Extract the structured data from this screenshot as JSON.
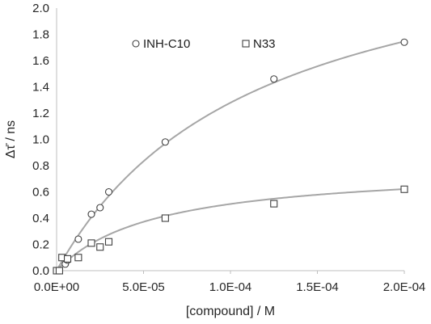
{
  "chart_data": {
    "type": "scatter",
    "title": "",
    "xlabel": "[compound] / M",
    "ylabel": "Δτ̄ / ns",
    "xlim": [
      0,
      0.0002
    ],
    "ylim": [
      0,
      2.0
    ],
    "x_ticks": [
      "0.0E+00",
      "5.0E-05",
      "1.0E-04",
      "1.5E-04",
      "2.0E-04"
    ],
    "y_ticks": [
      "0.0",
      "0.2",
      "0.4",
      "0.6",
      "0.8",
      "1.0",
      "1.2",
      "1.4",
      "1.6",
      "1.8",
      "2.0"
    ],
    "grid": false,
    "legend_position": "top",
    "series": [
      {
        "name": "INH-C10",
        "marker": "circle",
        "color": "#404040",
        "fit_color": "#a6a6a6",
        "fit": {
          "model": "hyperbolic",
          "bmax": 2.75,
          "kd": 0.000115
        },
        "x": [
          0,
          1.6e-06,
          5e-06,
          6.3e-06,
          1.25e-05,
          2e-05,
          2.5e-05,
          3e-05,
          6.25e-05,
          0.000125,
          0.0002
        ],
        "y": [
          0.0,
          0.0,
          0.05,
          0.08,
          0.24,
          0.43,
          0.48,
          0.6,
          0.98,
          1.46,
          1.74
        ]
      },
      {
        "name": "N33",
        "marker": "square",
        "color": "#404040",
        "fit_color": "#a6a6a6",
        "fit": {
          "model": "hyperbolic",
          "bmax": 0.8,
          "kd": 5.75e-05
        },
        "x": [
          0,
          1.6e-06,
          3.1e-06,
          6.3e-06,
          1.25e-05,
          2e-05,
          2.5e-05,
          3e-05,
          6.25e-05,
          0.000125,
          0.0002
        ],
        "y": [
          0.0,
          0.0,
          0.1,
          0.09,
          0.1,
          0.21,
          0.18,
          0.22,
          0.4,
          0.51,
          0.62
        ]
      }
    ]
  }
}
